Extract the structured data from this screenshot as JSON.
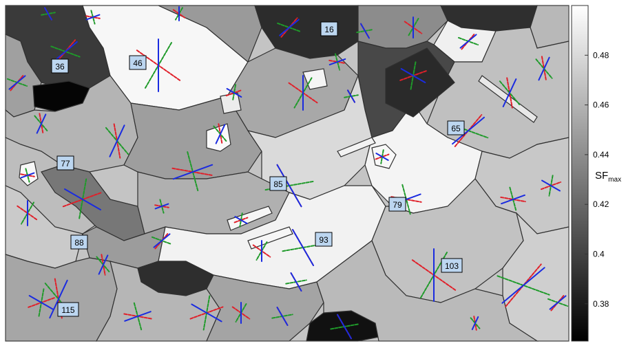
{
  "figure": {
    "colorbar": {
      "title": "SF",
      "title_subscript": "max",
      "ticks": [
        "0.48",
        "0.46",
        "0.44",
        "0.42",
        "0.4",
        "0.38"
      ],
      "tick_values": [
        0.48,
        0.46,
        0.44,
        0.42,
        0.4,
        0.38
      ],
      "range": [
        0.365,
        0.5
      ],
      "colormap": "gray (black = low, white = high)"
    },
    "grain_labels": [
      {
        "id": "16",
        "value": 0.375
      },
      {
        "id": "36",
        "value": 0.395
      },
      {
        "id": "46",
        "value": 0.495
      },
      {
        "id": "65",
        "value": 0.445
      },
      {
        "id": "77",
        "value": 0.445
      },
      {
        "id": "79",
        "value": 0.49
      },
      {
        "id": "85",
        "value": 0.455
      },
      {
        "id": "88",
        "value": 0.435
      },
      {
        "id": "93",
        "value": 0.492
      },
      {
        "id": "103",
        "value": 0.445
      },
      {
        "id": "115",
        "value": 0.44
      }
    ],
    "slip_trace_colors": [
      "#e0202a",
      "#1f9a2a",
      "#1a2be0"
    ],
    "label_box_fill": "#bcd6f0",
    "boundary_color": "#303030"
  }
}
